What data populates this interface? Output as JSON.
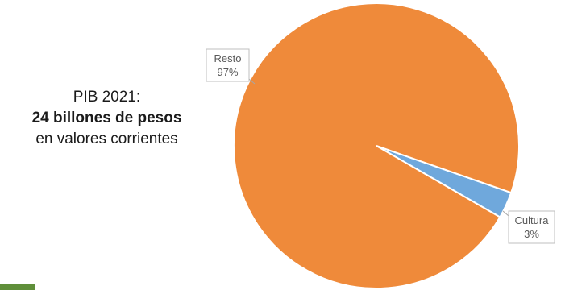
{
  "caption": {
    "line1": "PIB 2021:",
    "line2": "24 billones de pesos",
    "line3": "en valores corrientes"
  },
  "chart_data": {
    "type": "pie",
    "categories": [
      "Cultura",
      "Resto"
    ],
    "values": [
      3,
      97
    ],
    "data_labels": [
      {
        "category": "Cultura",
        "percent": "3%"
      },
      {
        "category": "Resto",
        "percent": "97%"
      }
    ],
    "colors": {
      "Cultura": "#6fa8dc",
      "Resto": "#ef8a3a"
    },
    "legend": "none"
  }
}
